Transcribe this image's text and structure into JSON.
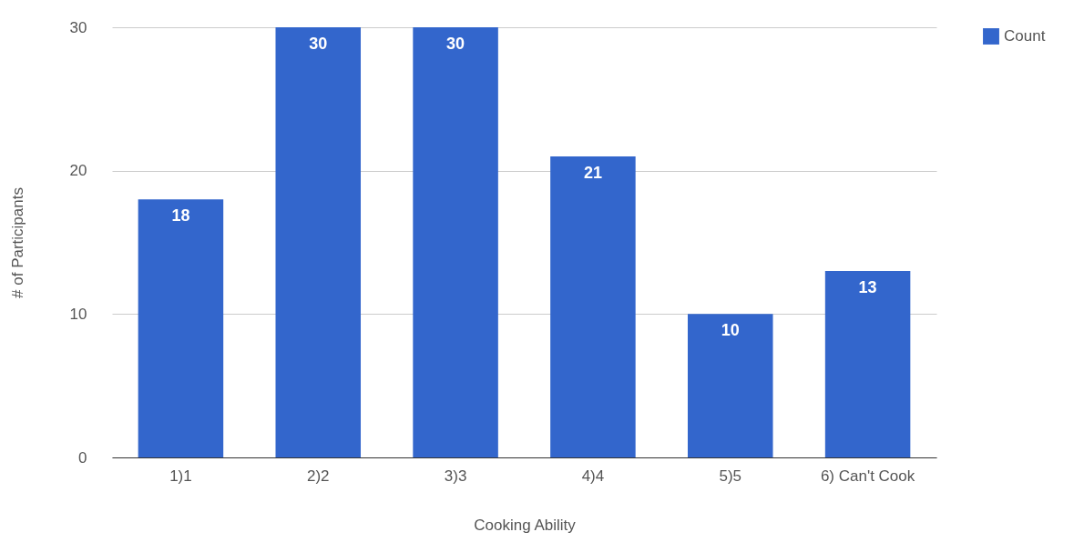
{
  "chart_data": {
    "type": "bar",
    "xlabel": "Cooking Ability",
    "ylabel": "# of Participants",
    "categories": [
      "1)1",
      "2)2",
      "3)3",
      "4)4",
      "5)5",
      "6) Can't Cook"
    ],
    "series": [
      {
        "name": "Count",
        "color": "#3366cc",
        "values": [
          18,
          30,
          30,
          21,
          10,
          13
        ]
      }
    ],
    "ylim": [
      0,
      30
    ],
    "yticks": [
      0,
      10,
      20,
      30
    ],
    "grid": "y",
    "legend": "top right",
    "data_labels": true
  }
}
